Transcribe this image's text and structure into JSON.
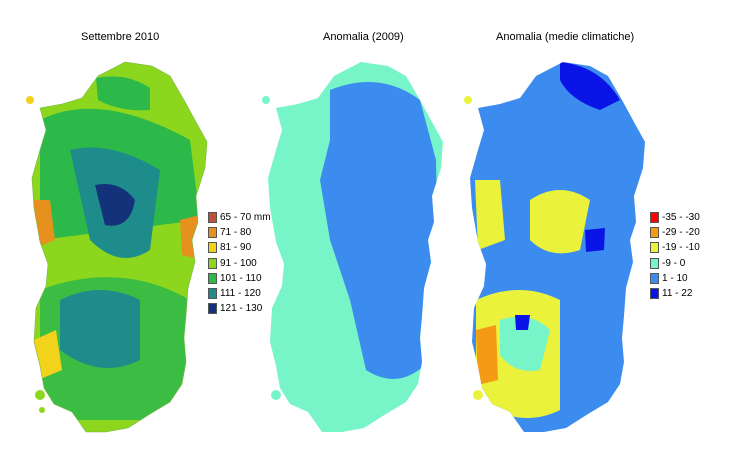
{
  "panels": [
    {
      "title": "Settembre 2010"
    },
    {
      "title": "Anomalia (2009)"
    },
    {
      "title": "Anomalia (medie climatiche)"
    }
  ],
  "legend_rainfall": {
    "items": [
      {
        "label": "65 - 70 mm",
        "color": "#c0503c"
      },
      {
        "label": "71 - 80",
        "color": "#e6901e"
      },
      {
        "label": "81 - 90",
        "color": "#f2d21a"
      },
      {
        "label": "91 - 100",
        "color": "#8cd61e"
      },
      {
        "label": "101 - 110",
        "color": "#2db84a"
      },
      {
        "label": "111 - 120",
        "color": "#1f8c8c"
      },
      {
        "label": "121 - 130",
        "color": "#14327a"
      }
    ]
  },
  "legend_anomaly": {
    "items": [
      {
        "label": "-35 - -30",
        "color": "#ff0000"
      },
      {
        "label": "-29 - -20",
        "color": "#f59a14"
      },
      {
        "label": "-19 - -10",
        "color": "#eaf23c"
      },
      {
        "label": "-9 - 0",
        "color": "#78f5c8"
      },
      {
        "label": "1 - 10",
        "color": "#3c8cf0"
      },
      {
        "label": "11 - 22",
        "color": "#0a14e6"
      }
    ]
  }
}
